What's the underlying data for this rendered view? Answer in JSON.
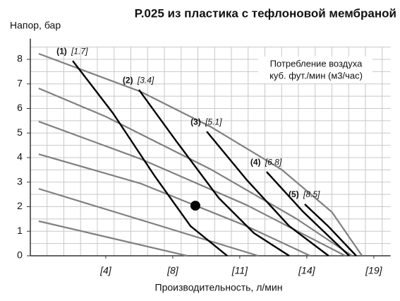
{
  "chart_data": {
    "type": "line",
    "title": "P.025 из пластика с тефлоновой мембраной",
    "y_label": "Напор, бар",
    "x_label": "Производительность, л/мин",
    "annotation": [
      "Потребление воздуха",
      "куб. фут./мин (м3/час)"
    ],
    "xlim": [
      0,
      21.5
    ],
    "ylim": [
      0,
      8.5
    ],
    "xticks": [
      {
        "value": 4.5,
        "label": "[4]"
      },
      {
        "value": 8.5,
        "label": "[8]"
      },
      {
        "value": 12.5,
        "label": "[11]"
      },
      {
        "value": 16.5,
        "label": "[14]"
      },
      {
        "value": 20.5,
        "label": "[19]"
      }
    ],
    "yticks": [
      0,
      1,
      2,
      3,
      4,
      5,
      6,
      7,
      8
    ],
    "grid": true,
    "series": [
      {
        "color": "#808080",
        "x": [
          0.5,
          6.6,
          10.8,
          15.0,
          18.0,
          19.8
        ],
        "values": [
          8.23,
          6.68,
          5.24,
          3.51,
          1.78,
          0
        ]
      },
      {
        "color": "#808080",
        "x": [
          0.5,
          4.5,
          10.8,
          15.9,
          19.2
        ],
        "values": [
          6.82,
          5.67,
          3.51,
          1.5,
          0
        ]
      },
      {
        "color": "#808080",
        "x": [
          0.5,
          6.6,
          12.9,
          18.8
        ],
        "values": [
          5.47,
          3.94,
          2.07,
          0
        ]
      },
      {
        "color": "#808080",
        "x": [
          0.5,
          6.6,
          12.9,
          16.7
        ],
        "values": [
          4.14,
          2.94,
          1.21,
          0
        ]
      },
      {
        "color": "#808080",
        "x": [
          0.5,
          13.6
        ],
        "values": [
          2.73,
          0
        ]
      },
      {
        "color": "#808080",
        "x": [
          0.5,
          9.35
        ],
        "values": [
          1.41,
          0
        ]
      },
      {
        "name": "(1)",
        "air": "[1.7]",
        "color": "#000000",
        "x": [
          2.53,
          4.93,
          7.45,
          9.56,
          11.75
        ],
        "values": [
          7.94,
          5.81,
          3.22,
          1.21,
          0
        ]
      },
      {
        "name": "(2)",
        "air": "[3.4]",
        "color": "#000000",
        "x": [
          6.48,
          8.72,
          11.24,
          13.35,
          15.45
        ],
        "values": [
          6.76,
          4.66,
          2.36,
          0.92,
          0
        ]
      },
      {
        "name": "(3)",
        "air": "[5.1]",
        "color": "#000000",
        "x": [
          10.53,
          12.93,
          15.45,
          17.8
        ],
        "values": [
          5.06,
          3.08,
          1.21,
          0
        ]
      },
      {
        "name": "(4)",
        "air": "[6.8]",
        "color": "#000000",
        "x": [
          14.1,
          16.3,
          19.03
        ],
        "values": [
          3.42,
          1.78,
          0
        ]
      },
      {
        "name": "(5)",
        "air": "[8.5]",
        "color": "#000000",
        "x": [
          16.38,
          17.77,
          19.45
        ],
        "values": [
          2.1,
          1.21,
          0
        ]
      }
    ],
    "point": {
      "x": 9.85,
      "y": 2.04,
      "color": "#000000"
    }
  }
}
